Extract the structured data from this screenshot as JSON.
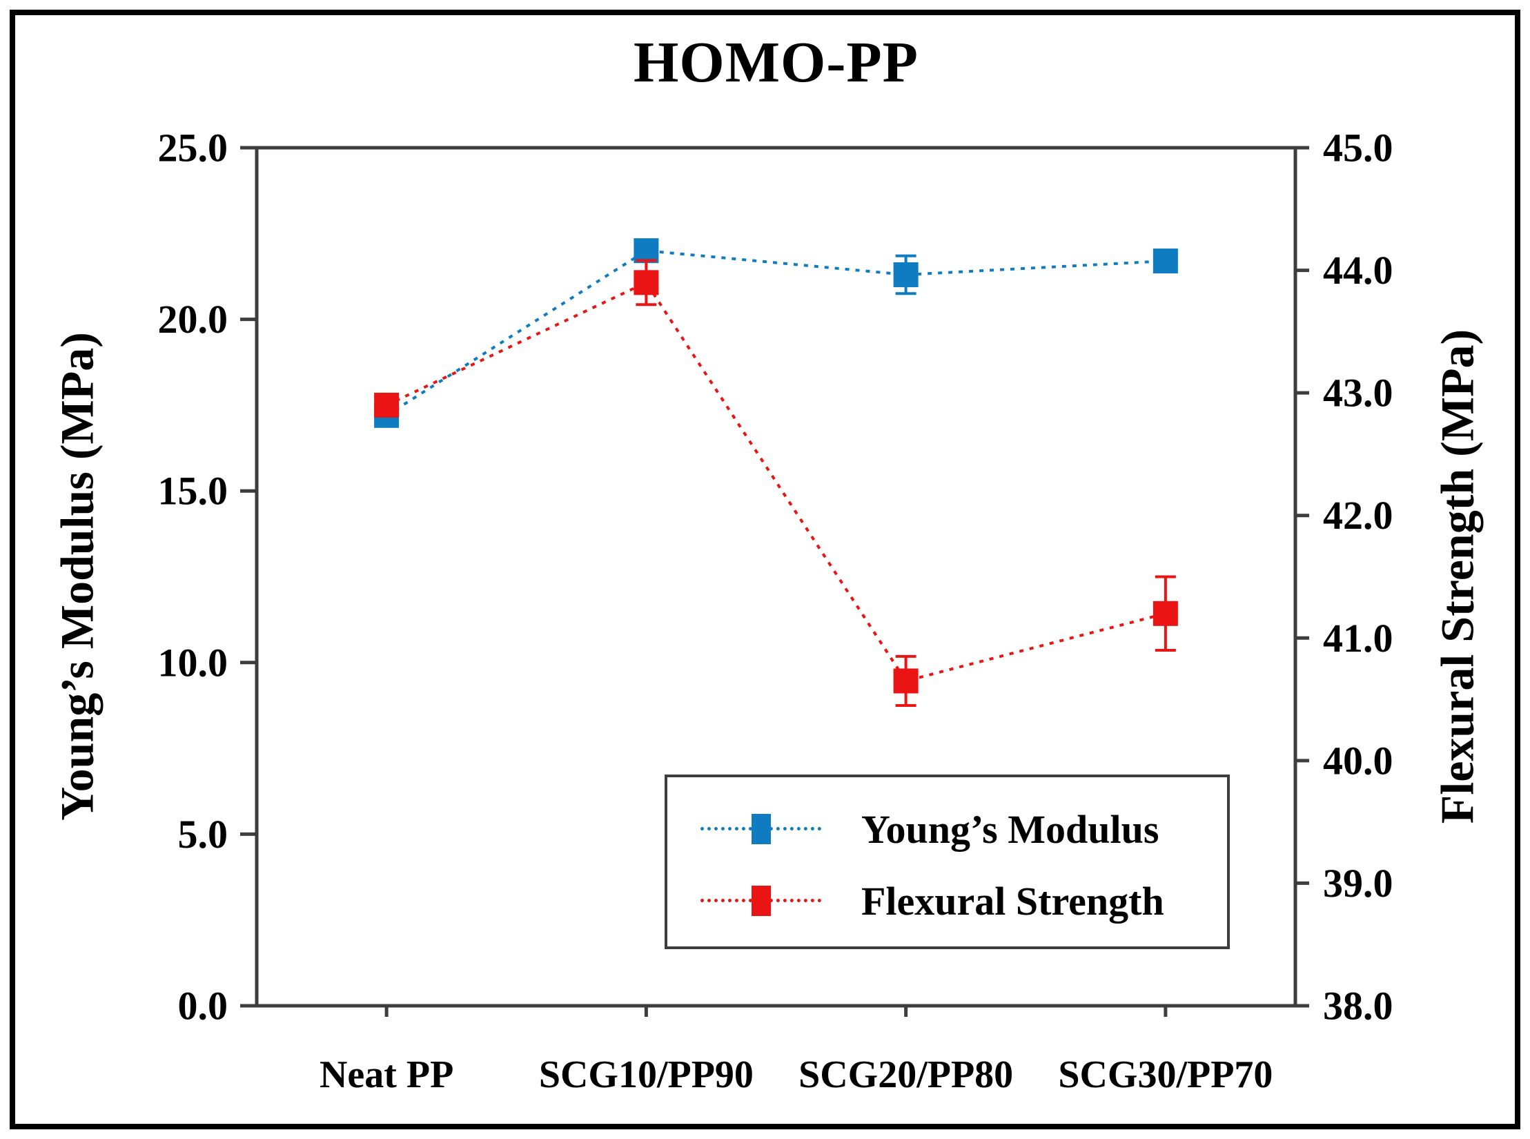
{
  "chart_data": {
    "type": "line",
    "title": "HOMO-PP",
    "categories": [
      "Neat PP",
      "SCG10/PP90",
      "SCG20/PP80",
      "SCG30/PP70"
    ],
    "series": [
      {
        "name": "Young’s Modulus",
        "axis": "left",
        "color": "#0F7CC2",
        "values": [
          17.2,
          22.0,
          21.3,
          21.7
        ],
        "errors": [
          0.2,
          0.2,
          0.55,
          0.15
        ]
      },
      {
        "name": "Flexural Strength",
        "axis": "right",
        "color": "#EA1414",
        "values": [
          42.9,
          43.9,
          40.65,
          41.2
        ],
        "errors": [
          0.08,
          0.18,
          0.2,
          0.3
        ]
      }
    ],
    "ylabel_left": "Young’s Modulus (MPa)",
    "ylabel_right": "Flexural Strength (MPa)",
    "y_left": {
      "min": 0,
      "max": 25,
      "step": 5,
      "tick_labels": [
        "0.0",
        "5.0",
        "10.0",
        "15.0",
        "20.0",
        "25.0"
      ]
    },
    "y_right": {
      "min": 38,
      "max": 45,
      "step": 1,
      "tick_labels": [
        "38.0",
        "39.0",
        "40.0",
        "41.0",
        "42.0",
        "43.0",
        "44.0",
        "45.0"
      ]
    },
    "line_style": "dotted",
    "marker": "square",
    "grid": false,
    "frame_color": "#3D3D3D",
    "legend": {
      "position": "inside-bottom-right",
      "entries": [
        "Young’s Modulus",
        "Flexural Strength"
      ]
    }
  }
}
